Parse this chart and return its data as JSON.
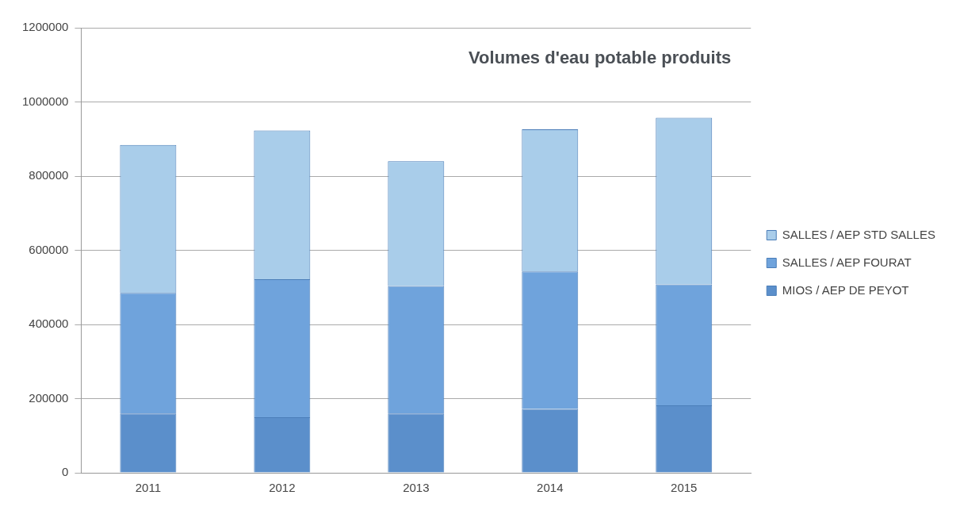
{
  "chart_data": {
    "type": "bar",
    "title": "Volumes d'eau potable produits",
    "stacked": true,
    "categories": [
      "2011",
      "2012",
      "2013",
      "2014",
      "2015"
    ],
    "series": [
      {
        "name": "MIOS / AEP DE PEYOT",
        "color": "#5b8fcb",
        "values": [
          160000,
          150000,
          160000,
          172000,
          182000
        ]
      },
      {
        "name": "SALLES / AEP FOURAT",
        "color": "#6fa3dc",
        "values": [
          325000,
          372000,
          344000,
          371000,
          326000
        ]
      },
      {
        "name": "SALLES / AEP STD SALLES",
        "color": "#a9cdea",
        "values": [
          399000,
          401000,
          336000,
          383000,
          449000
        ]
      }
    ],
    "ylim": [
      0,
      1200000
    ],
    "yticks": [
      0,
      200000,
      400000,
      600000,
      800000,
      1000000,
      1200000
    ],
    "grid": "y",
    "legend": "right"
  }
}
